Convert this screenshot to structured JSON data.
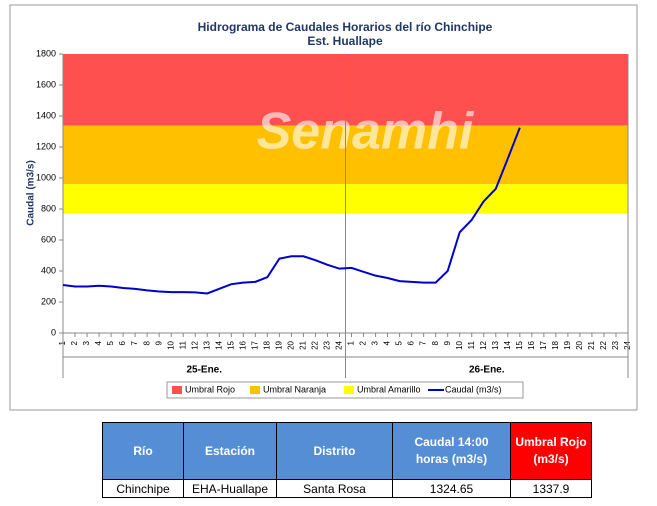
{
  "chart_data": {
    "type": "line",
    "title": "Hidrograma de Caudales Horarios del río Chinchipe",
    "subtitle": "Est. Huallape",
    "y_label": "Caudal  (m3/s)",
    "watermark": "Senamhi",
    "x_groups": [
      "25-Ene.",
      "26-Ene."
    ],
    "categories": [
      "1",
      "2",
      "3",
      "4",
      "5",
      "6",
      "7",
      "8",
      "9",
      "10",
      "11",
      "12",
      "13",
      "14",
      "15",
      "16",
      "17",
      "18",
      "19",
      "20",
      "21",
      "22",
      "23",
      "24",
      "1",
      "2",
      "3",
      "4",
      "5",
      "6",
      "7",
      "8",
      "9",
      "10",
      "11",
      "12",
      "13",
      "14",
      "15",
      "16",
      "17",
      "18",
      "19",
      "20",
      "21",
      "22",
      "23",
      "24"
    ],
    "ylim": [
      0,
      1800
    ],
    "yticks": [
      0,
      200,
      400,
      600,
      800,
      1000,
      1200,
      1400,
      1600,
      1800
    ],
    "series": [
      {
        "name": "Umbral Rojo",
        "color": "#ff5050",
        "band": true,
        "value": 1337.9
      },
      {
        "name": "Umbral Naranja",
        "color": "#ffc000",
        "band": true,
        "value": 960
      },
      {
        "name": "Umbral Amarillo",
        "color": "#ffff00",
        "band": true,
        "value": 770
      },
      {
        "name": "Caudal (m3/s)",
        "color": "#0000cc",
        "values": [
          310,
          300,
          300,
          305,
          300,
          290,
          285,
          275,
          268,
          264,
          264,
          262,
          255,
          285,
          315,
          325,
          330,
          360,
          480,
          495,
          495,
          470,
          440,
          415,
          420,
          395,
          370,
          355,
          335,
          330,
          325,
          325,
          400,
          650,
          730,
          850,
          930,
          1125,
          1324.65,
          null,
          null,
          null,
          null,
          null,
          null,
          null,
          null,
          null
        ]
      }
    ]
  },
  "table": {
    "header": [
      "Río",
      "Estación",
      "Distrito",
      "Caudal 14:00 horas (m3/s)",
      "Umbral Rojo (m3/s)"
    ],
    "rows": [
      [
        "Chinchipe",
        "EHA-Huallape",
        "Santa Rosa",
        "1324.65",
        "1337.9"
      ]
    ]
  }
}
